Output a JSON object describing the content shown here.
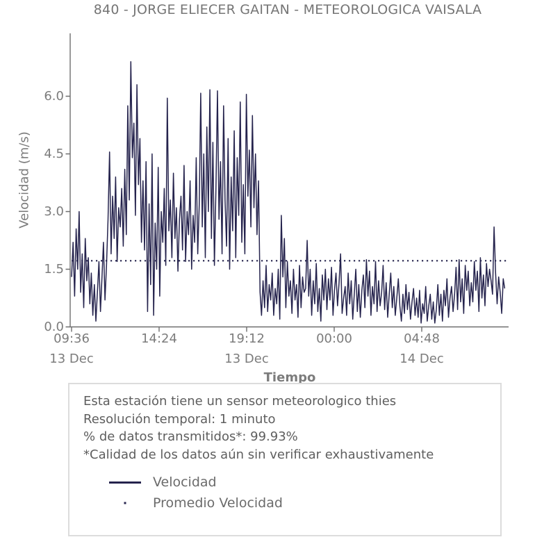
{
  "title": "840 - JORGE ELIECER GAITAN - METEOROLOGICA VAISALA",
  "colors": {
    "series": "#25234d",
    "axis": "#6e6e6e",
    "tick_text": "#7c7c7c",
    "info_text": "#5e5e5e",
    "box_border": "#dcdcdc"
  },
  "chart_data": {
    "type": "line",
    "title": "840 - JORGE ELIECER GAITAN - METEOROLOGICA VAISALA",
    "xlabel": "Tiempo",
    "ylabel": "Velocidad (m/s)",
    "ylim": [
      0,
      7.59
    ],
    "grid": false,
    "legend_position": "below-chart-in-annotation-box",
    "x_start": "13 Dec 09:36",
    "sample_interval_minutes": 5,
    "y_ticks": [
      {
        "value": 0.0,
        "label": "0.0"
      },
      {
        "value": 1.5,
        "label": "1.5"
      },
      {
        "value": 3.0,
        "label": "3.0"
      },
      {
        "value": 4.5,
        "label": "4.5"
      },
      {
        "value": 6.0,
        "label": "6.0"
      }
    ],
    "x_ticks": [
      {
        "minute": 0,
        "label": "09:36"
      },
      {
        "minute": 288,
        "label": "14:24"
      },
      {
        "minute": 576,
        "label": "19:12"
      },
      {
        "minute": 864,
        "label": "00:00"
      },
      {
        "minute": 1152,
        "label": "04:48"
      }
    ],
    "x_date_ticks": [
      {
        "minute": 0,
        "label": "13 Dec"
      },
      {
        "minute": 576,
        "label": "13 Dec"
      },
      {
        "minute": 1152,
        "label": "14 Dec"
      }
    ],
    "legend": [
      {
        "label": "Velocidad",
        "style": "solid"
      },
      {
        "label": "Promedio Velocidad",
        "style": "dotted"
      }
    ],
    "series": [
      {
        "name": "Velocidad",
        "style": "solid",
        "color": "#25234d",
        "values": [
          1.3,
          2.2,
          0.8,
          2.55,
          1.5,
          3.0,
          0.9,
          1.9,
          0.5,
          2.3,
          1.2,
          1.8,
          0.6,
          1.4,
          0.3,
          1.1,
          0.15,
          0.9,
          1.7,
          0.4,
          1.3,
          2.2,
          0.7,
          1.6,
          2.8,
          4.55,
          1.9,
          3.4,
          2.3,
          3.9,
          1.7,
          3.1,
          2.6,
          3.6,
          2.1,
          4.1,
          2.4,
          5.75,
          3.3,
          6.9,
          4.4,
          5.3,
          2.9,
          6.3,
          3.7,
          4.9,
          2.2,
          3.8,
          2.0,
          4.3,
          0.4,
          3.2,
          1.1,
          4.5,
          0.3,
          2.7,
          1.5,
          4.15,
          0.8,
          3.0,
          2.2,
          3.6,
          1.6,
          5.95,
          2.5,
          3.3,
          1.8,
          4.0,
          2.3,
          3.1,
          1.45,
          2.8,
          3.4,
          2.0,
          4.2,
          1.7,
          3.0,
          2.4,
          3.8,
          1.5,
          2.9,
          2.2,
          4.4,
          1.9,
          3.2,
          6.08,
          2.6,
          4.5,
          1.8,
          5.2,
          3.0,
          6.17,
          2.3,
          4.8,
          1.6,
          3.6,
          6.14,
          2.8,
          4.3,
          1.9,
          5.75,
          3.3,
          2.1,
          4.9,
          1.5,
          3.9,
          2.5,
          5.1,
          1.8,
          4.4,
          2.9,
          5.85,
          2.2,
          3.7,
          1.9,
          6.05,
          3.4,
          4.6,
          2.6,
          5.5,
          3.1,
          4.5,
          2.4,
          3.8,
          0.9,
          0.3,
          1.2,
          0.5,
          1.6,
          0.4,
          1.1,
          0.7,
          1.4,
          0.3,
          1.0,
          0.6,
          1.5,
          0.2,
          2.9,
          1.3,
          2.3,
          0.5,
          1.7,
          0.8,
          1.2,
          0.35,
          1.5,
          0.7,
          1.1,
          0.25,
          1.6,
          0.5,
          1.3,
          0.9,
          1.0,
          2.25,
          0.8,
          1.5,
          0.3,
          1.2,
          0.6,
          1.65,
          0.4,
          1.0,
          0.15,
          1.35,
          0.7,
          1.5,
          0.45,
          1.25,
          0.7,
          1.55,
          0.3,
          0.95,
          1.4,
          0.55,
          1.15,
          1.9,
          0.35,
          0.75,
          1.05,
          0.3,
          1.4,
          0.6,
          1.2,
          0.2,
          0.85,
          1.5,
          0.4,
          1.1,
          0.25,
          0.95,
          1.35,
          0.5,
          1.75,
          0.8,
          1.45,
          0.3,
          1.05,
          0.6,
          1.7,
          0.4,
          1.2,
          0.55,
          0.9,
          1.6,
          0.45,
          1.15,
          0.25,
          0.85,
          1.4,
          0.5,
          1.05,
          0.3,
          0.75,
          1.25,
          0.55,
          0.15,
          0.85,
          0.35,
          1.1,
          0.45,
          0.9,
          0.2,
          0.65,
          1.0,
          0.3,
          0.75,
          0.25,
          0.95,
          0.1,
          0.6,
          0.35,
          1.05,
          0.15,
          0.55,
          0.85,
          0.2,
          0.65,
          0.1,
          0.45,
          1.1,
          0.3,
          0.85,
          0.15,
          0.95,
          0.55,
          1.25,
          0.25,
          0.75,
          1.05,
          0.4,
          0.85,
          1.55,
          0.45,
          1.75,
          0.65,
          1.25,
          0.35,
          1.6,
          0.95,
          1.45,
          0.55,
          1.15,
          0.65,
          1.7,
          0.95,
          1.45,
          0.4,
          1.8,
          0.75,
          1.35,
          0.55,
          1.65,
          1.05,
          1.5,
          1.2,
          0.85,
          2.6,
          1.4,
          0.6,
          1.3,
          0.9,
          0.35,
          1.25,
          1.0
        ]
      },
      {
        "name": "Promedio Velocidad",
        "style": "dotted",
        "color": "#25234d",
        "value": 1.72
      }
    ]
  },
  "annotation": {
    "lines": [
      "Esta estación tiene un sensor meteorologico thies",
      "Resolución temporal: 1 minuto",
      "% de datos transmitidos*: 99.93%",
      "*Calidad de los datos aún sin verificar exhaustivamente"
    ]
  }
}
